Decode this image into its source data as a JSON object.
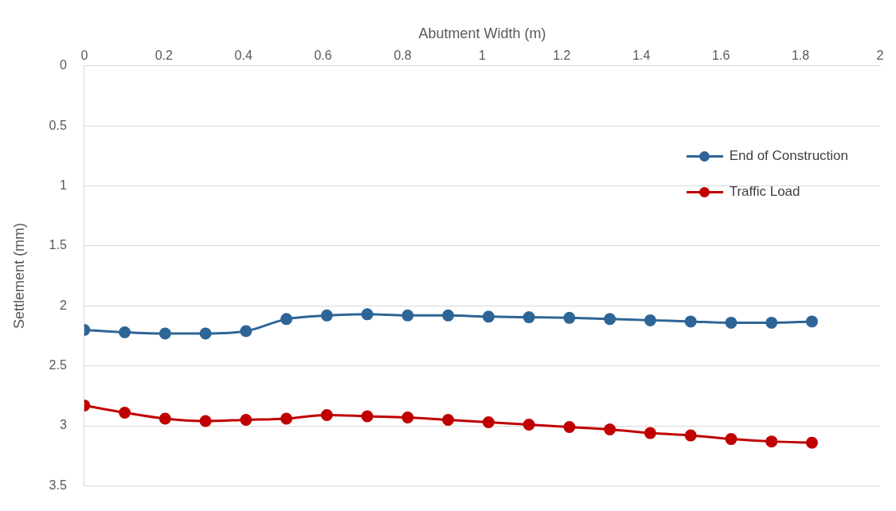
{
  "chart_data": {
    "type": "line",
    "xlabel": "Abutment Width (m)",
    "ylabel": "Settlement (mm)",
    "x": [
      0,
      0.1016,
      0.2032,
      0.3048,
      0.4064,
      0.508,
      0.6096,
      0.7112,
      0.8128,
      0.9144,
      1.016,
      1.1176,
      1.2192,
      1.3208,
      1.4224,
      1.524,
      1.6256,
      1.7272,
      1.8288
    ],
    "series": [
      {
        "name": "End of Construction",
        "color": "#2e6597",
        "values": [
          2.2,
          2.22,
          2.23,
          2.23,
          2.21,
          2.11,
          2.08,
          2.07,
          2.08,
          2.08,
          2.09,
          2.095,
          2.1,
          2.11,
          2.12,
          2.13,
          2.14,
          2.14,
          2.13
        ]
      },
      {
        "name": "Traffic Load",
        "color": "#c00000",
        "values": [
          2.83,
          2.89,
          2.94,
          2.96,
          2.95,
          2.94,
          2.91,
          2.92,
          2.93,
          2.95,
          2.97,
          2.99,
          3.01,
          3.03,
          3.06,
          3.08,
          3.11,
          3.13,
          3.14
        ]
      }
    ],
    "xlim": [
      0,
      2
    ],
    "xticks": [
      0,
      0.2,
      0.4,
      0.6,
      0.8,
      1,
      1.2,
      1.4,
      1.6,
      1.8,
      2
    ],
    "ylim": [
      3.5,
      0
    ],
    "yticks": [
      0,
      0.5,
      1,
      1.5,
      2,
      2.5,
      3,
      3.5
    ],
    "grid": "y",
    "legend": "top right",
    "marker": "circle",
    "line_style": "solid"
  }
}
